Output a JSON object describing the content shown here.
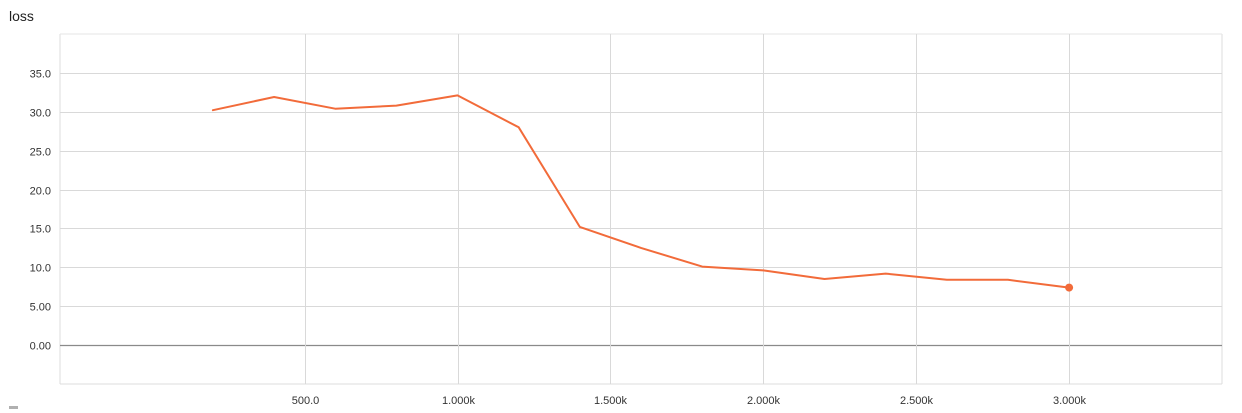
{
  "chart_data": {
    "type": "line",
    "title": "loss",
    "xlabel": "",
    "ylabel": "",
    "xlim": [
      -300,
      3500
    ],
    "ylim": [
      -5,
      40
    ],
    "x_ticks": [
      500,
      1000,
      1500,
      2000,
      2500,
      3000
    ],
    "x_tick_labels": [
      "500.0",
      "1.000k",
      "1.500k",
      "2.000k",
      "2.500k",
      "3.000k"
    ],
    "y_ticks": [
      0,
      5,
      10,
      15,
      20,
      25,
      30,
      35
    ],
    "y_tick_labels": [
      "0.00",
      "5.00",
      "10.0",
      "15.0",
      "20.0",
      "25.0",
      "30.0",
      "35.0"
    ],
    "grid": true,
    "series": [
      {
        "color": "#f26b3a",
        "x": [
          200,
          400,
          600,
          800,
          1000,
          1200,
          1400,
          1600,
          1800,
          2000,
          2200,
          2400,
          2600,
          2800,
          3000
        ],
        "y": [
          30.2,
          31.9,
          30.4,
          30.8,
          32.1,
          28.0,
          15.2,
          12.5,
          10.1,
          9.6,
          8.5,
          9.2,
          8.4,
          8.4,
          7.4
        ]
      }
    ]
  }
}
